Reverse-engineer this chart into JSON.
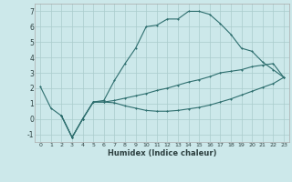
{
  "xlabel": "Humidex (Indice chaleur)",
  "bg_color": "#cce8ea",
  "grid_color": "#aacccc",
  "line_color": "#2d6e6e",
  "curve1_x": [
    0,
    1,
    2,
    3,
    4,
    5,
    6,
    7,
    8,
    9,
    10,
    11,
    12,
    13,
    14,
    15,
    16,
    17,
    18,
    19,
    20,
    21,
    22,
    23
  ],
  "curve1_y": [
    2.1,
    0.7,
    0.2,
    -1.2,
    0.0,
    1.1,
    1.2,
    2.5,
    3.6,
    4.6,
    6.0,
    6.1,
    6.5,
    6.5,
    7.0,
    7.0,
    6.8,
    6.2,
    5.5,
    4.6,
    4.4,
    3.7,
    3.2,
    2.7
  ],
  "curve2_x": [
    2,
    3,
    4,
    5,
    6,
    7,
    8,
    9,
    10,
    11,
    12,
    13,
    14,
    15,
    16,
    17,
    18,
    19,
    20,
    21,
    22,
    23
  ],
  "curve2_y": [
    0.2,
    -1.2,
    0.0,
    1.1,
    1.1,
    1.2,
    1.35,
    1.5,
    1.65,
    1.85,
    2.0,
    2.2,
    2.4,
    2.55,
    2.75,
    3.0,
    3.1,
    3.2,
    3.4,
    3.5,
    3.6,
    2.7
  ],
  "curve3_x": [
    2,
    3,
    4,
    5,
    6,
    7,
    8,
    9,
    10,
    11,
    12,
    13,
    14,
    15,
    16,
    17,
    18,
    19,
    20,
    21,
    22,
    23
  ],
  "curve3_y": [
    0.2,
    -1.2,
    0.0,
    1.1,
    1.1,
    1.05,
    0.85,
    0.7,
    0.55,
    0.5,
    0.5,
    0.55,
    0.65,
    0.75,
    0.9,
    1.1,
    1.3,
    1.55,
    1.8,
    2.05,
    2.3,
    2.7
  ],
  "xlim": [
    -0.5,
    23.5
  ],
  "ylim": [
    -1.5,
    7.5
  ],
  "yticks": [
    -1,
    0,
    1,
    2,
    3,
    4,
    5,
    6,
    7
  ],
  "xticks": [
    0,
    1,
    2,
    3,
    4,
    5,
    6,
    7,
    8,
    9,
    10,
    11,
    12,
    13,
    14,
    15,
    16,
    17,
    18,
    19,
    20,
    21,
    22,
    23
  ],
  "figsize": [
    3.2,
    2.0
  ],
  "dpi": 100
}
